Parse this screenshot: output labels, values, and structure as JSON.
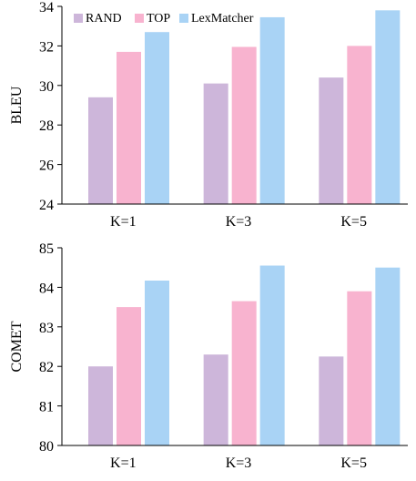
{
  "chart_data": [
    {
      "type": "bar",
      "categories": [
        "K=1",
        "K=3",
        "K=5"
      ],
      "series": [
        {
          "name": "RAND",
          "values": [
            29.4,
            30.1,
            30.4
          ],
          "color": "#cdb6da"
        },
        {
          "name": "TOP",
          "values": [
            31.7,
            31.95,
            32.0
          ],
          "color": "#f8b3cf"
        },
        {
          "name": "LexMatcher",
          "values": [
            32.7,
            33.45,
            33.8
          ],
          "color": "#a9d3f5"
        }
      ],
      "ylabel": "BLEU",
      "xlabel": "",
      "ylim": [
        24,
        34
      ],
      "yticks": [
        24,
        26,
        28,
        30,
        32,
        34
      ],
      "legend": "top-left",
      "grid": false
    },
    {
      "type": "bar",
      "categories": [
        "K=1",
        "K=3",
        "K=5"
      ],
      "series": [
        {
          "name": "RAND",
          "values": [
            82.0,
            82.3,
            82.25
          ],
          "color": "#cdb6da"
        },
        {
          "name": "TOP",
          "values": [
            83.5,
            83.65,
            83.9
          ],
          "color": "#f8b3cf"
        },
        {
          "name": "LexMatcher",
          "values": [
            84.17,
            84.55,
            84.5
          ],
          "color": "#a9d3f5"
        }
      ],
      "ylabel": "COMET",
      "xlabel": "",
      "ylim": [
        80,
        85
      ],
      "yticks": [
        80,
        81,
        82,
        83,
        84,
        85
      ],
      "legend": "none",
      "grid": false
    }
  ]
}
